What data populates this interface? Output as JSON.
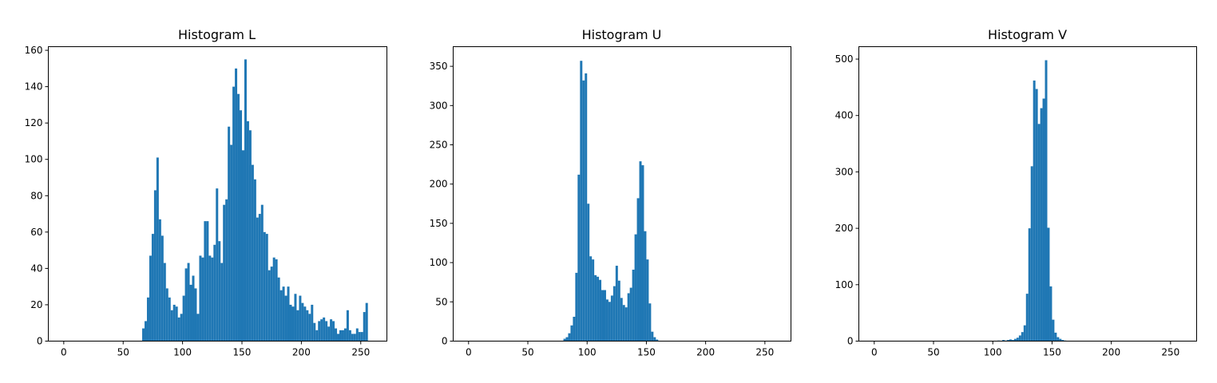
{
  "chart_data": [
    {
      "type": "bar",
      "title": "Histogram L",
      "xlabel": "",
      "ylabel": "",
      "xlim": [
        -13,
        272
      ],
      "ylim": [
        0,
        162
      ],
      "xticks": [
        0,
        50,
        100,
        150,
        200,
        250
      ],
      "yticks": [
        0,
        20,
        40,
        60,
        80,
        100,
        120,
        140,
        160
      ],
      "bin_width": 2,
      "color": "#1f77b4",
      "grid": false,
      "bins": [
        [
          66,
          7
        ],
        [
          68,
          11
        ],
        [
          70,
          24
        ],
        [
          72,
          47
        ],
        [
          74,
          59
        ],
        [
          76,
          83
        ],
        [
          78,
          101
        ],
        [
          80,
          67
        ],
        [
          82,
          58
        ],
        [
          84,
          43
        ],
        [
          86,
          29
        ],
        [
          88,
          24
        ],
        [
          90,
          17
        ],
        [
          92,
          20
        ],
        [
          94,
          19
        ],
        [
          96,
          13
        ],
        [
          98,
          15
        ],
        [
          100,
          25
        ],
        [
          102,
          40
        ],
        [
          104,
          43
        ],
        [
          106,
          31
        ],
        [
          108,
          36
        ],
        [
          110,
          29
        ],
        [
          112,
          15
        ],
        [
          114,
          47
        ],
        [
          116,
          46
        ],
        [
          118,
          66
        ],
        [
          120,
          66
        ],
        [
          122,
          47
        ],
        [
          124,
          46
        ],
        [
          126,
          53
        ],
        [
          128,
          84
        ],
        [
          130,
          55
        ],
        [
          132,
          43
        ],
        [
          134,
          75
        ],
        [
          136,
          78
        ],
        [
          138,
          118
        ],
        [
          140,
          108
        ],
        [
          142,
          140
        ],
        [
          144,
          150
        ],
        [
          146,
          136
        ],
        [
          148,
          127
        ],
        [
          150,
          105
        ],
        [
          152,
          155
        ],
        [
          154,
          121
        ],
        [
          156,
          116
        ],
        [
          158,
          97
        ],
        [
          160,
          89
        ],
        [
          162,
          68
        ],
        [
          164,
          70
        ],
        [
          166,
          75
        ],
        [
          168,
          60
        ],
        [
          170,
          59
        ],
        [
          172,
          39
        ],
        [
          174,
          41
        ],
        [
          176,
          46
        ],
        [
          178,
          45
        ],
        [
          180,
          35
        ],
        [
          182,
          28
        ],
        [
          184,
          30
        ],
        [
          186,
          25
        ],
        [
          188,
          30
        ],
        [
          190,
          20
        ],
        [
          192,
          19
        ],
        [
          194,
          26
        ],
        [
          196,
          17
        ],
        [
          198,
          25
        ],
        [
          200,
          21
        ],
        [
          202,
          19
        ],
        [
          204,
          17
        ],
        [
          206,
          15
        ],
        [
          208,
          20
        ],
        [
          210,
          10
        ],
        [
          212,
          6
        ],
        [
          214,
          11
        ],
        [
          216,
          12
        ],
        [
          218,
          13
        ],
        [
          220,
          11
        ],
        [
          222,
          8
        ],
        [
          224,
          12
        ],
        [
          226,
          11
        ],
        [
          228,
          7
        ],
        [
          230,
          4
        ],
        [
          232,
          6
        ],
        [
          234,
          6
        ],
        [
          236,
          7
        ],
        [
          238,
          17
        ],
        [
          240,
          6
        ],
        [
          242,
          4
        ],
        [
          244,
          4
        ],
        [
          246,
          7
        ],
        [
          248,
          5
        ],
        [
          250,
          5
        ],
        [
          252,
          16
        ],
        [
          254,
          21
        ]
      ]
    },
    {
      "type": "bar",
      "title": "Histogram U",
      "xlabel": "",
      "ylabel": "",
      "xlim": [
        -13,
        272
      ],
      "ylim": [
        0,
        375
      ],
      "xticks": [
        0,
        50,
        100,
        150,
        200,
        250
      ],
      "yticks": [
        0,
        50,
        100,
        150,
        200,
        250,
        300,
        350
      ],
      "bin_width": 2,
      "color": "#1f77b4",
      "grid": false,
      "bins": [
        [
          80,
          3
        ],
        [
          82,
          5
        ],
        [
          84,
          10
        ],
        [
          86,
          20
        ],
        [
          88,
          31
        ],
        [
          90,
          87
        ],
        [
          92,
          212
        ],
        [
          94,
          357
        ],
        [
          96,
          332
        ],
        [
          98,
          341
        ],
        [
          100,
          175
        ],
        [
          102,
          108
        ],
        [
          104,
          104
        ],
        [
          106,
          84
        ],
        [
          108,
          82
        ],
        [
          110,
          78
        ],
        [
          112,
          65
        ],
        [
          114,
          65
        ],
        [
          116,
          53
        ],
        [
          118,
          50
        ],
        [
          120,
          58
        ],
        [
          122,
          70
        ],
        [
          124,
          96
        ],
        [
          126,
          77
        ],
        [
          128,
          55
        ],
        [
          130,
          46
        ],
        [
          132,
          43
        ],
        [
          134,
          61
        ],
        [
          136,
          68
        ],
        [
          138,
          91
        ],
        [
          140,
          136
        ],
        [
          142,
          182
        ],
        [
          144,
          229
        ],
        [
          146,
          224
        ],
        [
          148,
          140
        ],
        [
          150,
          104
        ],
        [
          152,
          48
        ],
        [
          154,
          12
        ],
        [
          156,
          5
        ],
        [
          158,
          2
        ]
      ]
    },
    {
      "type": "bar",
      "title": "Histogram V",
      "xlabel": "",
      "ylabel": "",
      "xlim": [
        -13,
        272
      ],
      "ylim": [
        0,
        522
      ],
      "xticks": [
        0,
        50,
        100,
        150,
        200,
        250
      ],
      "yticks": [
        0,
        100,
        200,
        300,
        400,
        500
      ],
      "bin_width": 2,
      "color": "#1f77b4",
      "grid": false,
      "bins": [
        [
          104,
          1
        ],
        [
          108,
          2
        ],
        [
          110,
          1
        ],
        [
          112,
          2
        ],
        [
          114,
          3
        ],
        [
          116,
          2
        ],
        [
          118,
          4
        ],
        [
          120,
          6
        ],
        [
          122,
          10
        ],
        [
          124,
          16
        ],
        [
          126,
          28
        ],
        [
          128,
          84
        ],
        [
          130,
          200
        ],
        [
          132,
          310
        ],
        [
          134,
          462
        ],
        [
          136,
          447
        ],
        [
          138,
          385
        ],
        [
          140,
          413
        ],
        [
          142,
          430
        ],
        [
          144,
          498
        ],
        [
          146,
          201
        ],
        [
          148,
          97
        ],
        [
          150,
          38
        ],
        [
          152,
          15
        ],
        [
          154,
          7
        ],
        [
          156,
          4
        ],
        [
          158,
          2
        ],
        [
          160,
          1
        ]
      ]
    }
  ]
}
